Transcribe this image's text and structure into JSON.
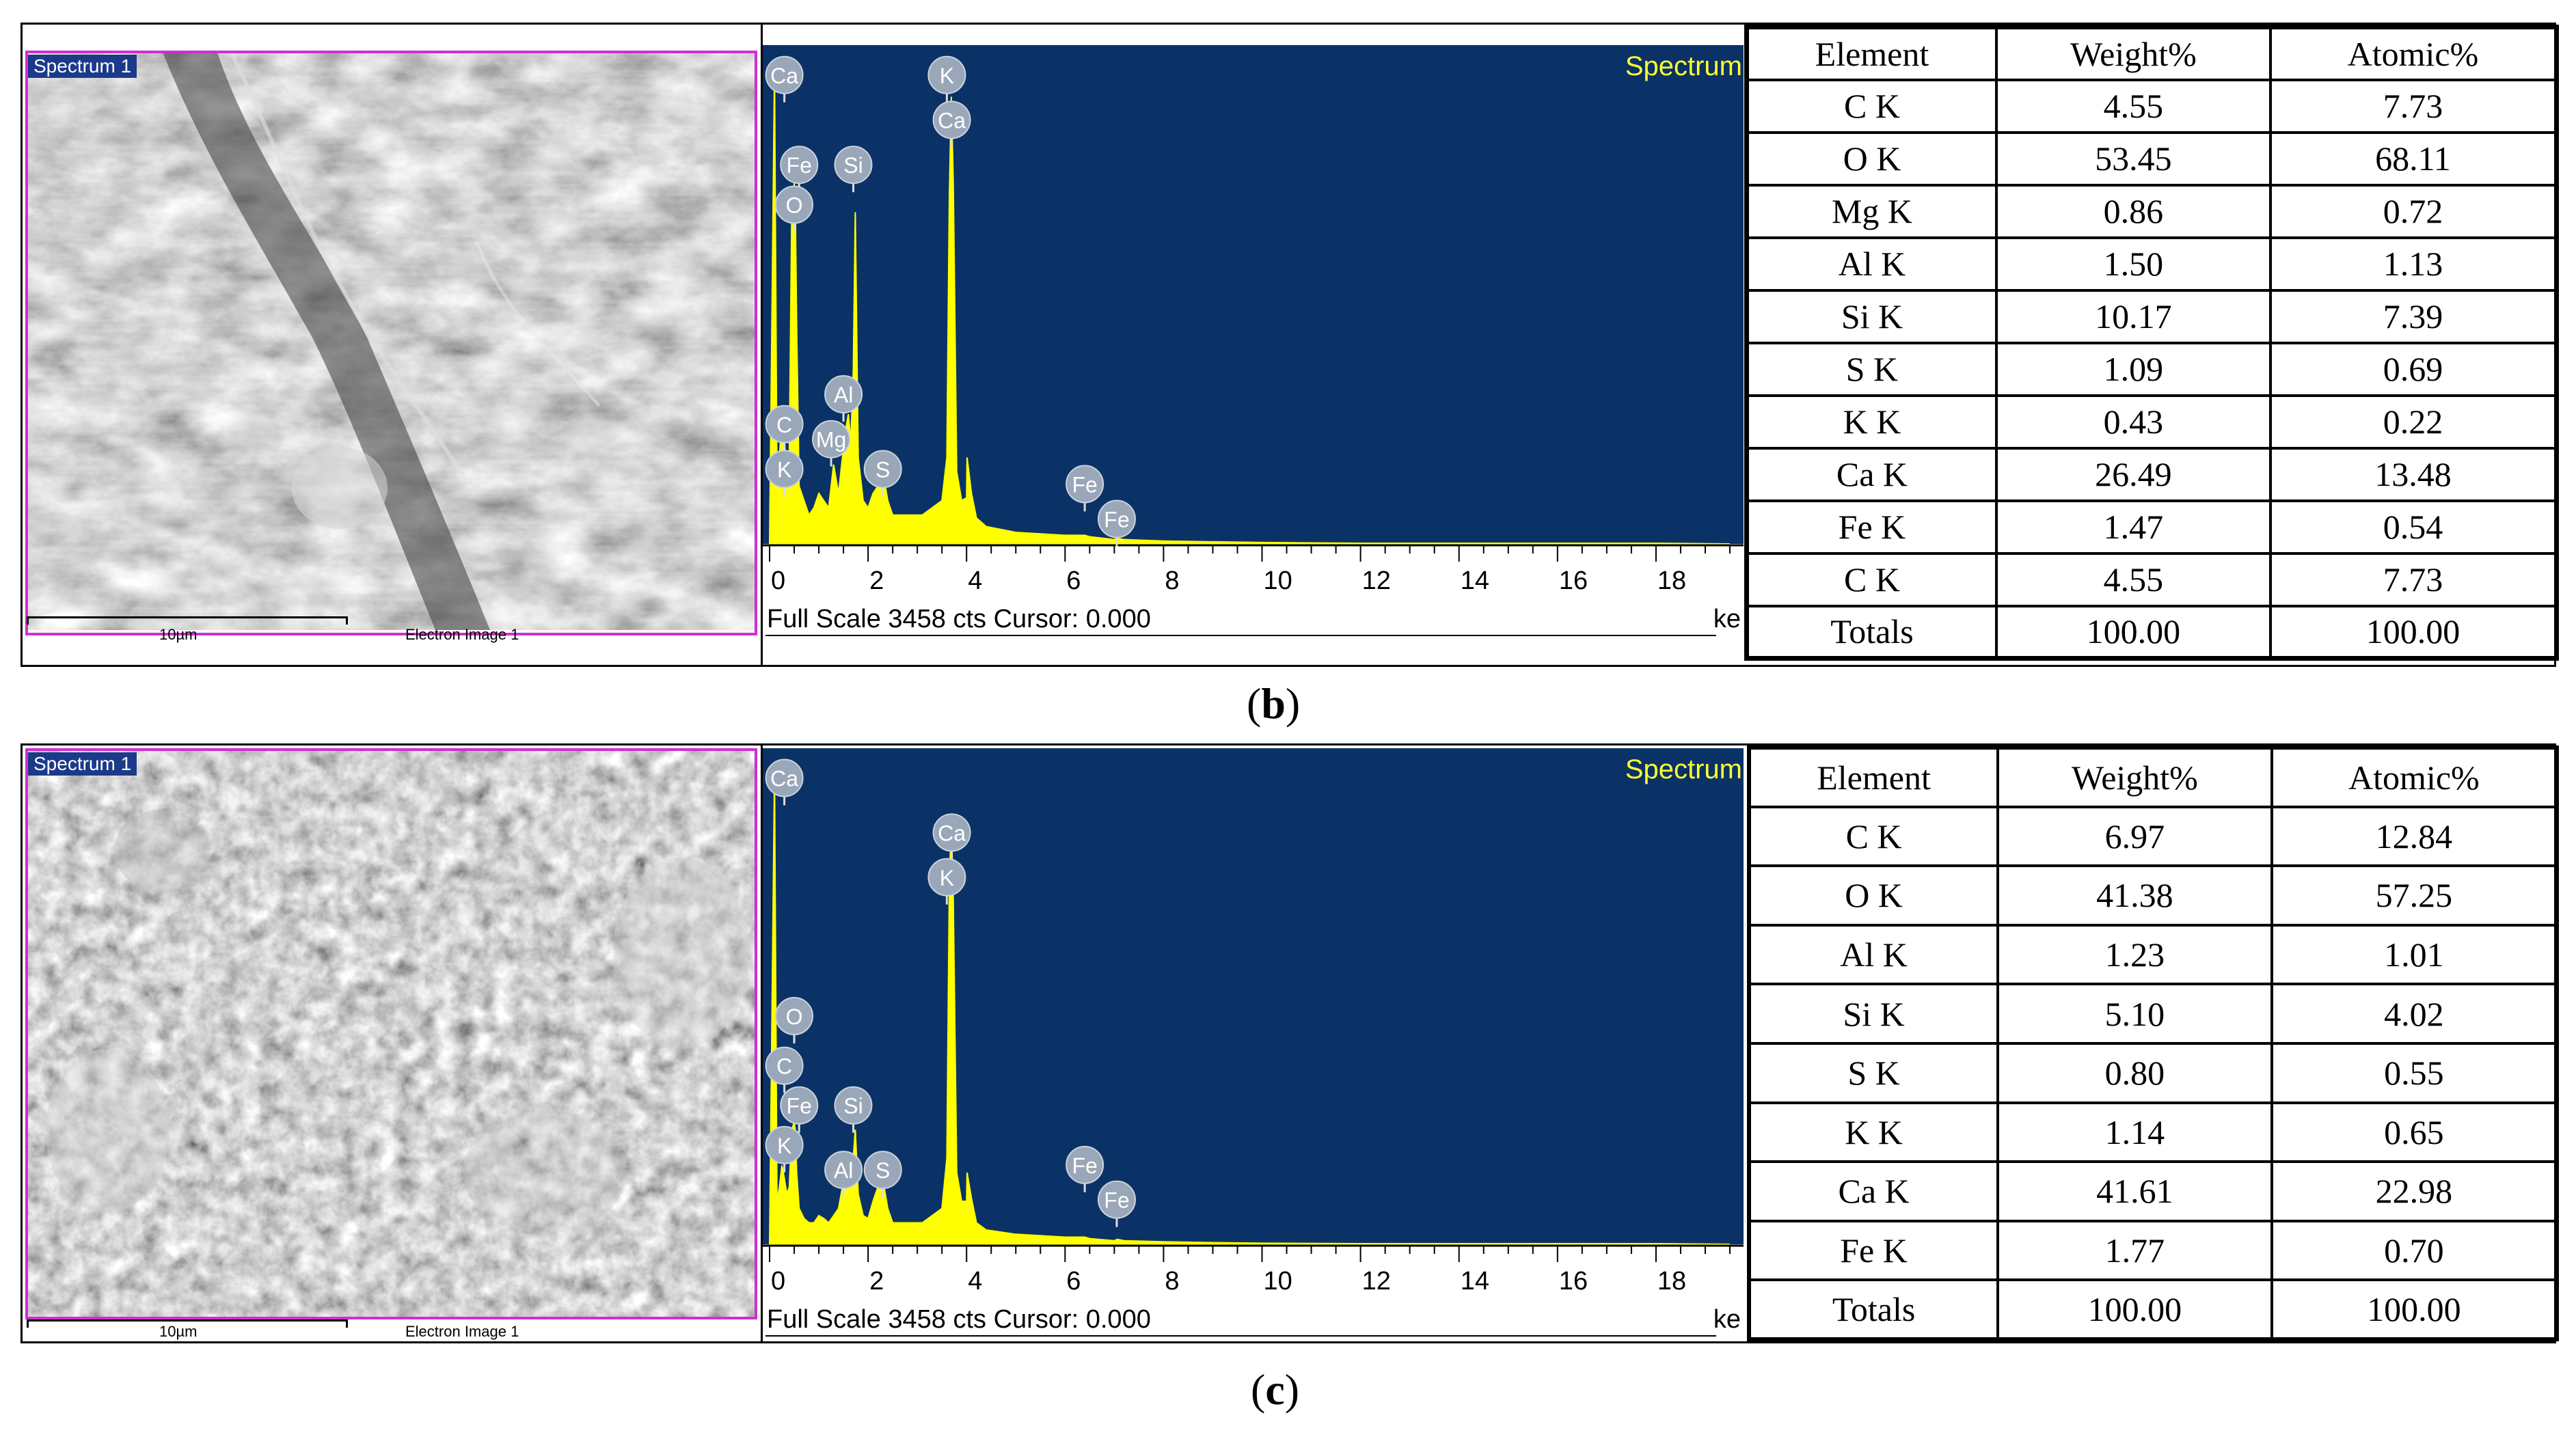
{
  "panels": [
    {
      "id": "b",
      "caption": "b",
      "sem": {
        "spectrum_label": "Spectrum 1",
        "scale_label": "10µm",
        "image_label": "Electron Image 1"
      },
      "spectrum": {
        "title": "Spectrum",
        "footer": "Full Scale 3458 cts Cursor: 0.000",
        "unit_fragment": "ke",
        "peak_labels": [
          {
            "text": "Ca",
            "energy": 0.3,
            "y": 0.06
          },
          {
            "text": "K",
            "energy": 3.6,
            "y": 0.06
          },
          {
            "text": "Ca",
            "energy": 3.7,
            "y": 0.15
          },
          {
            "text": "Fe",
            "energy": 0.6,
            "y": 0.24
          },
          {
            "text": "Si",
            "energy": 1.7,
            "y": 0.24
          },
          {
            "text": "O",
            "energy": 0.5,
            "y": 0.32
          },
          {
            "text": "Al",
            "energy": 1.5,
            "y": 0.7
          },
          {
            "text": "C",
            "energy": 0.3,
            "y": 0.76
          },
          {
            "text": "Mg",
            "energy": 1.25,
            "y": 0.79
          },
          {
            "text": "K",
            "energy": 0.3,
            "y": 0.85
          },
          {
            "text": "S",
            "energy": 2.3,
            "y": 0.85
          },
          {
            "text": "Fe",
            "energy": 6.4,
            "y": 0.88
          },
          {
            "text": "Fe",
            "energy": 7.05,
            "y": 0.95
          }
        ]
      },
      "table": {
        "headers": [
          "Element",
          "Weight%",
          "Atomic%"
        ],
        "rows": [
          [
            "C K",
            "4.55",
            "7.73"
          ],
          [
            "O K",
            "53.45",
            "68.11"
          ],
          [
            "Mg K",
            "0.86",
            "0.72"
          ],
          [
            "Al K",
            "1.50",
            "1.13"
          ],
          [
            "Si K",
            "10.17",
            "7.39"
          ],
          [
            "S K",
            "1.09",
            "0.69"
          ],
          [
            "K K",
            "0.43",
            "0.22"
          ],
          [
            "Ca K",
            "26.49",
            "13.48"
          ],
          [
            "Fe K",
            "1.47",
            "0.54"
          ],
          [
            "C K",
            "4.55",
            "7.73"
          ],
          [
            "Totals",
            "100.00",
            "100.00"
          ]
        ]
      }
    },
    {
      "id": "c",
      "caption": "c",
      "sem": {
        "spectrum_label": "Spectrum 1",
        "scale_label": "10µm",
        "image_label": "Electron Image 1"
      },
      "spectrum": {
        "title": "Spectrum",
        "footer": "Full Scale 3458 cts Cursor: 0.000",
        "unit_fragment": "ke",
        "peak_labels": [
          {
            "text": "Ca",
            "energy": 0.3,
            "y": 0.06
          },
          {
            "text": "Ca",
            "energy": 3.7,
            "y": 0.17
          },
          {
            "text": "K",
            "energy": 3.6,
            "y": 0.26
          },
          {
            "text": "O",
            "energy": 0.5,
            "y": 0.54
          },
          {
            "text": "C",
            "energy": 0.3,
            "y": 0.64
          },
          {
            "text": "Fe",
            "energy": 0.6,
            "y": 0.72
          },
          {
            "text": "Si",
            "energy": 1.7,
            "y": 0.72
          },
          {
            "text": "K",
            "energy": 0.3,
            "y": 0.8
          },
          {
            "text": "Al",
            "energy": 1.5,
            "y": 0.85
          },
          {
            "text": "S",
            "energy": 2.3,
            "y": 0.85
          },
          {
            "text": "Fe",
            "energy": 6.4,
            "y": 0.84
          },
          {
            "text": "Fe",
            "energy": 7.05,
            "y": 0.91
          }
        ]
      },
      "table": {
        "headers": [
          "Element",
          "Weight%",
          "Atomic%"
        ],
        "rows": [
          [
            "C K",
            "6.97",
            "12.84"
          ],
          [
            "O K",
            "41.38",
            "57.25"
          ],
          [
            "Al K",
            "1.23",
            "1.01"
          ],
          [
            "Si K",
            "5.10",
            "4.02"
          ],
          [
            "S K",
            "0.80",
            "0.55"
          ],
          [
            "K K",
            "1.14",
            "0.65"
          ],
          [
            "Ca K",
            "41.61",
            "22.98"
          ],
          [
            "Fe K",
            "1.77",
            "0.70"
          ],
          [
            "Totals",
            "100.00",
            "100.00"
          ]
        ]
      }
    }
  ],
  "colors": {
    "spectrum_bg": "#0b3266",
    "spectrum_fill": "#ffff00",
    "label_circle": "#9aa7b8",
    "sem_frame": "#d02fd0"
  },
  "chart_data": [
    {
      "type": "area",
      "title": "Spectrum",
      "xlabel": "ke",
      "xlim": [
        0,
        19.5
      ],
      "x_ticks": [
        0,
        2,
        4,
        6,
        8,
        10,
        12,
        14,
        16,
        18
      ],
      "ylim": [
        0,
        3458
      ],
      "grid": false,
      "series": [
        {
          "x": [
            0.0,
            0.1,
            0.15,
            0.2,
            0.25,
            0.28,
            0.35,
            0.4,
            0.45,
            0.5,
            0.52,
            0.55,
            0.6,
            0.7,
            0.8,
            0.9,
            1.0,
            1.1,
            1.2,
            1.25,
            1.3,
            1.4,
            1.48,
            1.55,
            1.6,
            1.65,
            1.7,
            1.74,
            1.8,
            1.9,
            2.0,
            2.1,
            2.2,
            2.3,
            2.4,
            2.5,
            2.7,
            2.9,
            3.1,
            3.3,
            3.5,
            3.6,
            3.65,
            3.69,
            3.73,
            3.8,
            3.9,
            4.0,
            4.01,
            4.1,
            4.2,
            4.4,
            5.0,
            6.0,
            6.4,
            6.5,
            7.0,
            7.06,
            7.2,
            8.0,
            9.0,
            10.0,
            12.0,
            14.0,
            16.0,
            18.0,
            19.5
          ],
          "y": [
            0,
            3300,
            400,
            600,
            900,
            800,
            500,
            600,
            2300,
            2500,
            2400,
            1500,
            400,
            300,
            200,
            250,
            350,
            300,
            250,
            400,
            550,
            350,
            600,
            800,
            900,
            700,
            1200,
            2300,
            600,
            300,
            250,
            350,
            400,
            500,
            300,
            200,
            200,
            200,
            200,
            250,
            300,
            600,
            2400,
            3100,
            2500,
            500,
            300,
            320,
            600,
            350,
            180,
            120,
            80,
            60,
            60,
            50,
            30,
            40,
            30,
            20,
            15,
            10,
            5,
            5,
            5,
            5,
            0
          ]
        }
      ]
    },
    {
      "type": "area",
      "title": "Spectrum",
      "xlabel": "ke",
      "xlim": [
        0,
        19.5
      ],
      "x_ticks": [
        0,
        2,
        4,
        6,
        8,
        10,
        12,
        14,
        16,
        18
      ],
      "ylim": [
        0,
        3458
      ],
      "grid": false,
      "series": [
        {
          "x": [
            0.0,
            0.1,
            0.15,
            0.2,
            0.25,
            0.28,
            0.35,
            0.4,
            0.45,
            0.5,
            0.52,
            0.55,
            0.6,
            0.7,
            0.8,
            0.9,
            1.0,
            1.1,
            1.2,
            1.3,
            1.4,
            1.48,
            1.55,
            1.6,
            1.65,
            1.7,
            1.74,
            1.8,
            1.9,
            2.0,
            2.1,
            2.2,
            2.3,
            2.4,
            2.5,
            2.7,
            2.9,
            3.1,
            3.3,
            3.5,
            3.6,
            3.65,
            3.69,
            3.73,
            3.8,
            3.9,
            4.0,
            4.01,
            4.1,
            4.2,
            4.4,
            5.0,
            6.0,
            6.4,
            6.5,
            7.0,
            7.06,
            7.2,
            8.0,
            9.0,
            10.0,
            12.0,
            14.0,
            16.0,
            18.0,
            19.5
          ],
          "y": [
            0,
            3300,
            300,
            400,
            550,
            500,
            350,
            400,
            800,
            850,
            800,
            500,
            250,
            180,
            150,
            150,
            200,
            180,
            150,
            200,
            250,
            400,
            500,
            450,
            400,
            600,
            800,
            350,
            200,
            180,
            300,
            400,
            450,
            250,
            150,
            150,
            150,
            150,
            200,
            250,
            600,
            2500,
            2950,
            2400,
            500,
            300,
            300,
            500,
            320,
            150,
            100,
            70,
            50,
            50,
            40,
            25,
            35,
            25,
            18,
            12,
            8,
            5,
            5,
            5,
            5,
            0
          ]
        }
      ]
    }
  ]
}
